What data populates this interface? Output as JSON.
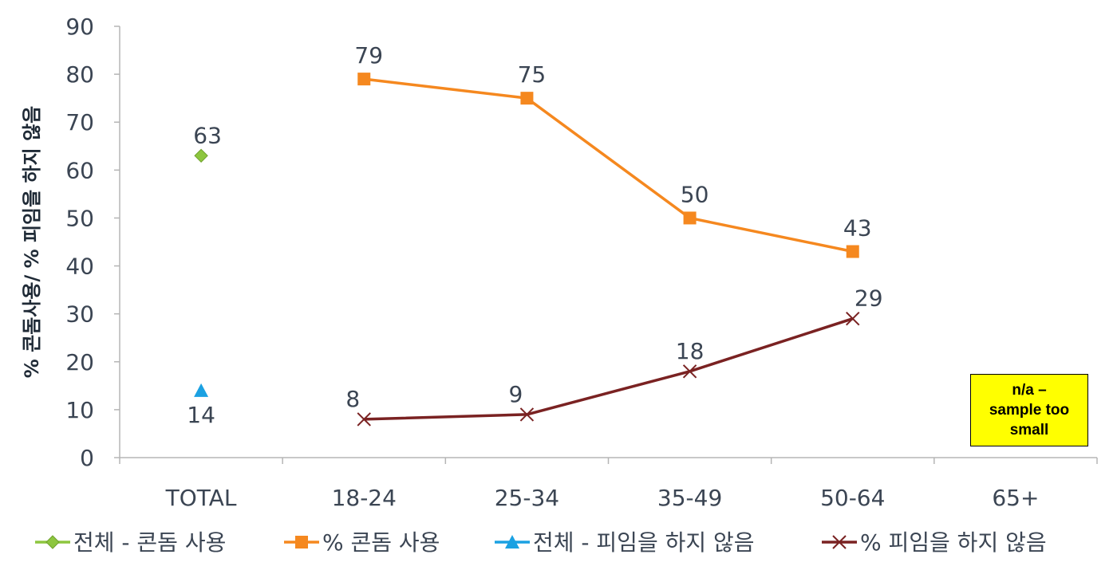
{
  "chart_data": {
    "type": "line",
    "categories": [
      "TOTAL",
      "18-24",
      "25-34",
      "35-49",
      "50-64",
      "65+"
    ],
    "ylabel": "% 콘돔사용/ % 피임을 하지 않음",
    "ylim": [
      0,
      90
    ],
    "yticks": [
      0,
      10,
      20,
      30,
      40,
      50,
      60,
      70,
      80,
      90
    ],
    "grid": false,
    "legend_position": "bottom",
    "series": [
      {
        "name": "전체 - 콘돔 사용",
        "marker": "diamond",
        "color": "#8dc63f",
        "values": [
          63,
          null,
          null,
          null,
          null,
          null
        ]
      },
      {
        "name": "% 콘돔 사용",
        "marker": "square",
        "color": "#f5881f",
        "values": [
          null,
          79,
          75,
          50,
          43,
          null
        ]
      },
      {
        "name": "전체 - 피임을 하지 않음",
        "marker": "triangle",
        "color": "#1ba1e2",
        "values": [
          14,
          null,
          null,
          null,
          null,
          null
        ]
      },
      {
        "name": "% 피임을 하지 않음",
        "marker": "x",
        "color": "#7a2222",
        "values": [
          null,
          8,
          9,
          18,
          29,
          null
        ]
      }
    ],
    "annotation": "n/a –\nsample too\nsmall"
  }
}
